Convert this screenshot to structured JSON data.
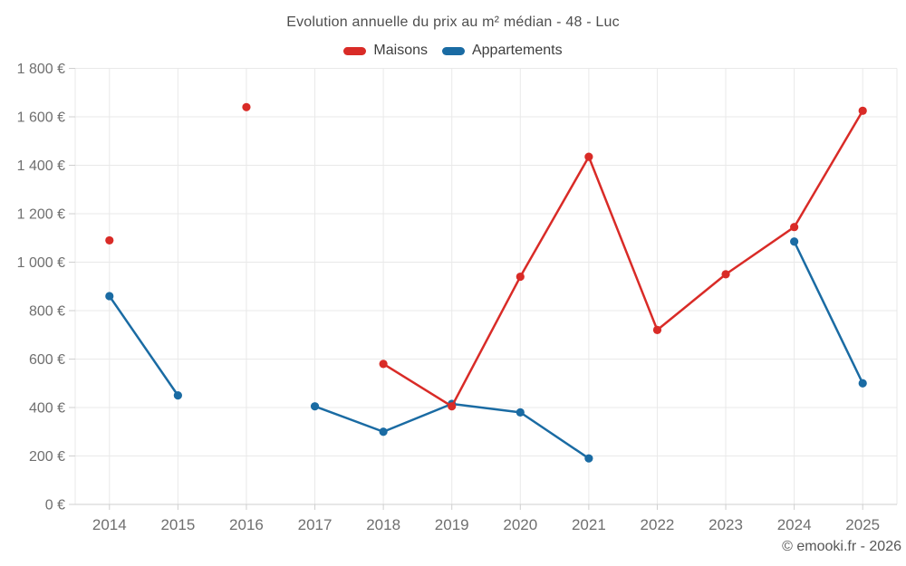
{
  "title": "Evolution annuelle du prix au m² médian - 48 - Luc",
  "footer": {
    "copyright": "© emooki.fr - 2026"
  },
  "chart_data": {
    "type": "line",
    "title": "Evolution annuelle du prix au m² médian - 48 - Luc",
    "categories": [
      "2014",
      "2015",
      "2016",
      "2017",
      "2018",
      "2019",
      "2020",
      "2021",
      "2022",
      "2023",
      "2024",
      "2025"
    ],
    "series": [
      {
        "name": "Maisons",
        "color": "#d92b27",
        "values": [
          1090,
          null,
          1640,
          null,
          580,
          405,
          940,
          1435,
          720,
          950,
          1145,
          1625
        ]
      },
      {
        "name": "Appartements",
        "color": "#1a6ba3",
        "values": [
          860,
          450,
          null,
          405,
          300,
          415,
          380,
          190,
          null,
          null,
          1085,
          500
        ]
      }
    ],
    "ylim": [
      0,
      1800
    ],
    "yticks": [
      {
        "value": 0,
        "label": "0 €"
      },
      {
        "value": 200,
        "label": "200 €"
      },
      {
        "value": 400,
        "label": "400 €"
      },
      {
        "value": 600,
        "label": "600 €"
      },
      {
        "value": 800,
        "label": "800 €"
      },
      {
        "value": 1000,
        "label": "1 000 €"
      },
      {
        "value": 1200,
        "label": "1 200 €"
      },
      {
        "value": 1400,
        "label": "1 400 €"
      },
      {
        "value": 1600,
        "label": "1 600 €"
      },
      {
        "value": 1800,
        "label": "1 800 €"
      }
    ],
    "grid": true,
    "legend_position": "top",
    "colors": {
      "grid_line": "#e9e9e9",
      "axis_line": "#cfcfcf",
      "tick_label": "#6f6f6f"
    }
  }
}
